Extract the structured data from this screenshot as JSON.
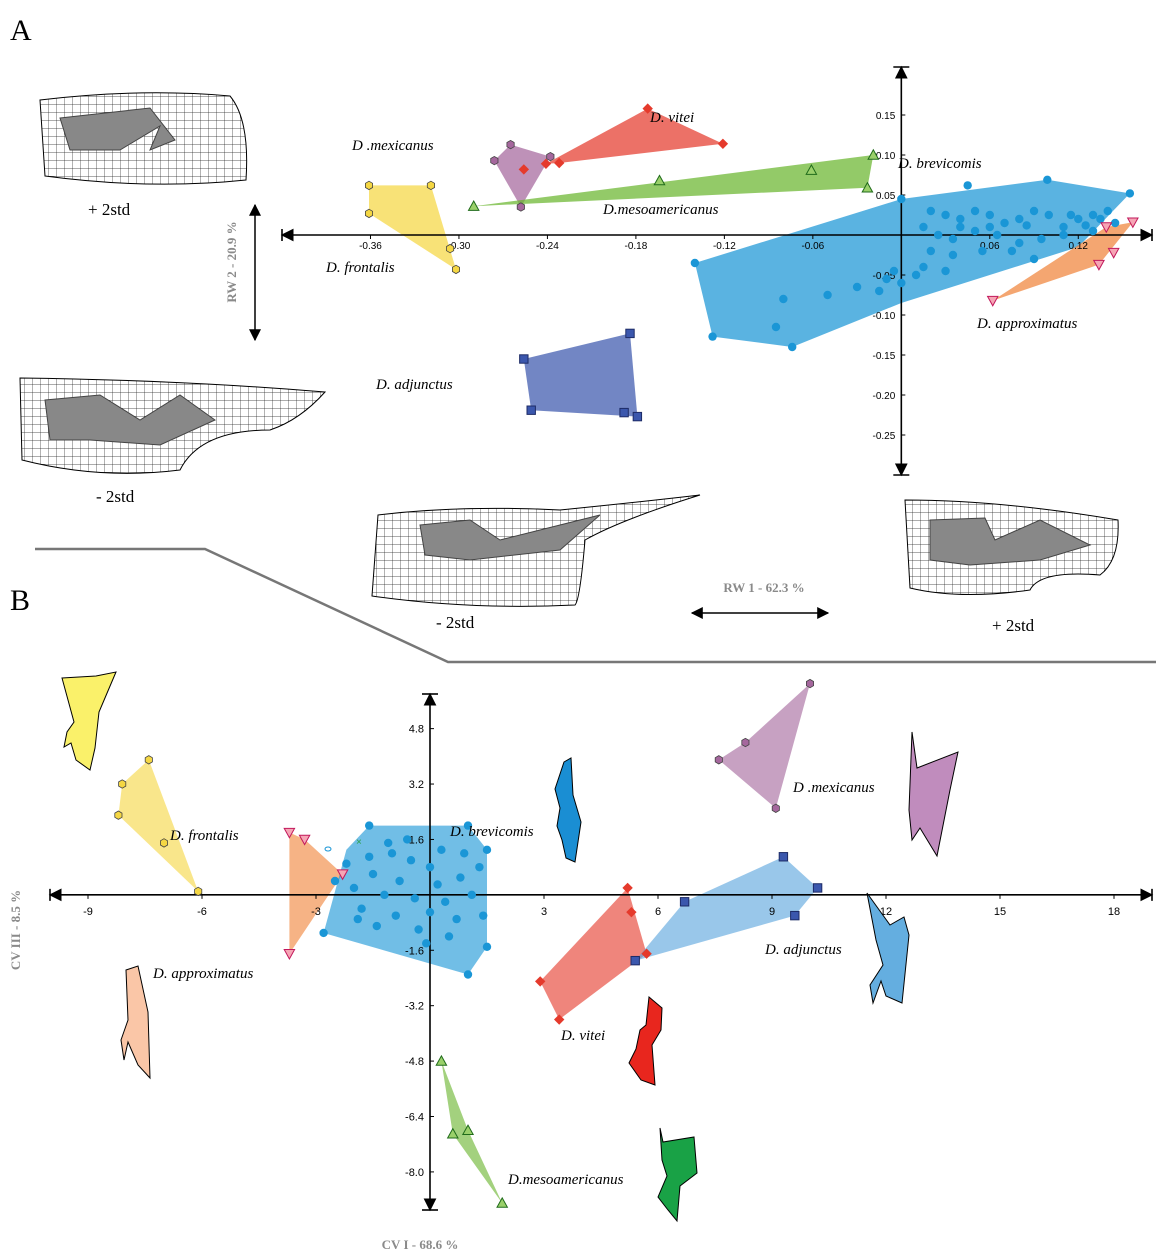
{
  "colors": {
    "frontalis": "#f5d743",
    "mexicanus": "#a5679d",
    "vitei": "#e53a2c",
    "mesoamericanus": "#6ab52e",
    "brevicomis": "#1a96d6",
    "approximatus": "#f0843a",
    "adjunctus": "#3b57ad",
    "mesoamericanusB": "#2aa14a",
    "adjunctusB": "#5aa5dd"
  },
  "panels": {
    "A": "A",
    "B": "B"
  },
  "deformation_labels": {
    "y_plus": "+ 2std",
    "y_minus": "- 2std",
    "x_minus": "- 2std",
    "x_plus": "+ 2std"
  },
  "chart_data": [
    {
      "type": "scatter",
      "panel": "A",
      "xlabel": "RW 1 - 62.3 %",
      "ylabel": "RW 2 - 20.9 %",
      "xlim": [
        -0.42,
        0.17
      ],
      "ylim": [
        -0.3,
        0.21
      ],
      "xticks": [
        "-0.36",
        "-0.30",
        "-0.24",
        "-0.18",
        "-0.12",
        "-0.06",
        "0.06",
        "0.12"
      ],
      "yticks": [
        "0.15",
        "0.10",
        "0.05",
        "-0.05",
        "-0.10",
        "-0.15",
        "-0.20",
        "-0.25"
      ],
      "series": [
        {
          "name": "D. frontalis",
          "marker": "hexagon",
          "color_key": "frontalis",
          "points": [
            [
              -0.361,
              0.062
            ],
            [
              -0.319,
              0.062
            ],
            [
              -0.361,
              0.027
            ],
            [
              -0.306,
              -0.017
            ],
            [
              -0.302,
              -0.043
            ]
          ],
          "hull": [
            [
              -0.361,
              0.062
            ],
            [
              -0.319,
              0.062
            ],
            [
              -0.302,
              -0.043
            ],
            [
              -0.361,
              0.027
            ]
          ]
        },
        {
          "name": "D .mexicanus",
          "marker": "hexagon",
          "color_key": "mexicanus",
          "points": [
            [
              -0.265,
              0.113
            ],
            [
              -0.276,
              0.093
            ],
            [
              -0.258,
              0.035
            ],
            [
              -0.238,
              0.098
            ]
          ],
          "hull": [
            [
              -0.265,
              0.113
            ],
            [
              -0.238,
              0.098
            ],
            [
              -0.258,
              0.035
            ],
            [
              -0.276,
              0.093
            ]
          ]
        },
        {
          "name": "D. vitei",
          "marker": "diamond",
          "color_key": "vitei",
          "points": [
            [
              -0.172,
              0.158
            ],
            [
              -0.121,
              0.114
            ],
            [
              -0.232,
              0.09
            ],
            [
              -0.241,
              0.089
            ],
            [
              -0.256,
              0.082
            ]
          ],
          "hull": [
            [
              -0.172,
              0.158
            ],
            [
              -0.121,
              0.114
            ],
            [
              -0.232,
              0.09
            ],
            [
              -0.241,
              0.089
            ]
          ]
        },
        {
          "name": "D.mesoamericanus",
          "marker": "triangle-up",
          "color_key": "mesoamericanus",
          "points": [
            [
              -0.019,
              0.1
            ],
            [
              -0.061,
              0.081
            ],
            [
              -0.164,
              0.068
            ],
            [
              -0.023,
              0.059
            ],
            [
              -0.29,
              0.036
            ]
          ],
          "hull": [
            [
              -0.019,
              0.1
            ],
            [
              -0.023,
              0.059
            ],
            [
              -0.29,
              0.036
            ]
          ]
        },
        {
          "name": "D. brevicomis",
          "marker": "circle",
          "color_key": "brevicomis",
          "points": [
            [
              0.099,
              0.069
            ],
            [
              0.155,
              0.052
            ],
            [
              0.0,
              0.045
            ],
            [
              0.045,
              0.062
            ],
            [
              0.02,
              0.03
            ],
            [
              0.03,
              0.025
            ],
            [
              0.04,
              0.02
            ],
            [
              0.05,
              0.03
            ],
            [
              0.06,
              0.025
            ],
            [
              0.07,
              0.015
            ],
            [
              0.08,
              0.02
            ],
            [
              0.09,
              0.03
            ],
            [
              0.1,
              0.025
            ],
            [
              0.11,
              0.01
            ],
            [
              0.12,
              0.02
            ],
            [
              0.13,
              0.025
            ],
            [
              0.14,
              0.03
            ],
            [
              0.145,
              0.015
            ],
            [
              0.015,
              0.01
            ],
            [
              0.025,
              0.0
            ],
            [
              0.035,
              -0.005
            ],
            [
              0.05,
              0.005
            ],
            [
              0.065,
              0.0
            ],
            [
              0.08,
              -0.01
            ],
            [
              0.095,
              -0.005
            ],
            [
              0.11,
              0.0
            ],
            [
              0.13,
              0.005
            ],
            [
              0.02,
              -0.02
            ],
            [
              0.035,
              -0.025
            ],
            [
              0.055,
              -0.02
            ],
            [
              0.075,
              -0.02
            ],
            [
              0.09,
              -0.03
            ],
            [
              0.015,
              -0.04
            ],
            [
              0.03,
              -0.045
            ],
            [
              0.01,
              -0.05
            ],
            [
              -0.005,
              -0.045
            ],
            [
              -0.01,
              -0.055
            ],
            [
              0.0,
              -0.06
            ],
            [
              -0.015,
              -0.07
            ],
            [
              -0.03,
              -0.065
            ],
            [
              -0.05,
              -0.075
            ],
            [
              -0.08,
              -0.08
            ],
            [
              -0.14,
              -0.035
            ],
            [
              -0.128,
              -0.127
            ],
            [
              -0.085,
              -0.115
            ],
            [
              -0.074,
              -0.14
            ],
            [
              0.04,
              0.01
            ],
            [
              0.06,
              0.01
            ],
            [
              0.085,
              0.012
            ],
            [
              0.115,
              0.025
            ],
            [
              0.125,
              0.012
            ],
            [
              0.135,
              0.02
            ]
          ],
          "hull": [
            [
              -0.14,
              -0.035
            ],
            [
              0.0,
              0.045
            ],
            [
              0.099,
              0.069
            ],
            [
              0.155,
              0.052
            ],
            [
              0.12,
              -0.015
            ],
            [
              0.0,
              -0.085
            ],
            [
              -0.074,
              -0.14
            ],
            [
              -0.128,
              -0.127
            ]
          ]
        },
        {
          "name": "D. approximatus",
          "marker": "triangle-down",
          "color_key": "approximatus",
          "points": [
            [
              0.139,
              0.01
            ],
            [
              0.157,
              0.016
            ],
            [
              0.144,
              -0.022
            ],
            [
              0.134,
              -0.037
            ],
            [
              0.062,
              -0.082
            ]
          ],
          "hull": [
            [
              0.157,
              0.016
            ],
            [
              0.139,
              0.01
            ],
            [
              0.062,
              -0.082
            ],
            [
              0.134,
              -0.037
            ]
          ]
        },
        {
          "name": "D. adjunctus",
          "marker": "square",
          "color_key": "adjunctus",
          "points": [
            [
              -0.184,
              -0.123
            ],
            [
              -0.256,
              -0.155
            ],
            [
              -0.251,
              -0.219
            ],
            [
              -0.188,
              -0.222
            ],
            [
              -0.179,
              -0.227
            ]
          ],
          "hull": [
            [
              -0.256,
              -0.155
            ],
            [
              -0.184,
              -0.123
            ],
            [
              -0.179,
              -0.227
            ],
            [
              -0.251,
              -0.219
            ]
          ]
        }
      ]
    },
    {
      "type": "scatter",
      "panel": "B",
      "xlabel": "CV I - 68.6 %",
      "ylabel": "CV III - 8.5 %",
      "xlim": [
        -10,
        19
      ],
      "ylim": [
        -9.1,
        5.8
      ],
      "xticks": [
        "-9",
        "-6",
        "-3",
        "3",
        "6",
        "9",
        "12",
        "15",
        "18"
      ],
      "yticks": [
        "4.8",
        "3.2",
        "1.6",
        "-1.6",
        "-3.2",
        "-4.8",
        "-6.4",
        "-8.0"
      ],
      "series": [
        {
          "name": "D. frontalis",
          "marker": "hexagon",
          "color_key": "frontalis",
          "points": [
            [
              -7.4,
              3.9
            ],
            [
              -8.1,
              3.2
            ],
            [
              -8.2,
              2.3
            ],
            [
              -7.0,
              1.5
            ],
            [
              -6.1,
              0.1
            ]
          ],
          "hull": [
            [
              -7.4,
              3.9
            ],
            [
              -6.1,
              0.1
            ],
            [
              -8.2,
              2.3
            ],
            [
              -8.1,
              3.2
            ]
          ]
        },
        {
          "name": "D. approximatus",
          "marker": "triangle-down",
          "color_key": "approximatus",
          "points": [
            [
              -3.7,
              1.8
            ],
            [
              -3.3,
              1.6
            ],
            [
              -2.3,
              0.6
            ],
            [
              -3.7,
              -1.7
            ]
          ],
          "hull": [
            [
              -3.7,
              1.8
            ],
            [
              -3.3,
              1.6
            ],
            [
              -2.3,
              0.6
            ],
            [
              -3.7,
              -1.7
            ]
          ]
        },
        {
          "name": "D. brevicomis",
          "marker": "circle",
          "color_key": "brevicomis",
          "points": [
            [
              -2.8,
              -1.1
            ],
            [
              -1.6,
              2.0
            ],
            [
              1.0,
              2.0
            ],
            [
              1.5,
              1.3
            ],
            [
              1.5,
              -1.5
            ],
            [
              1.0,
              -2.3
            ],
            [
              -1.0,
              1.2
            ],
            [
              -0.5,
              1.0
            ],
            [
              0.0,
              0.8
            ],
            [
              -1.5,
              0.6
            ],
            [
              -0.8,
              0.4
            ],
            [
              0.2,
              0.3
            ],
            [
              0.8,
              0.5
            ],
            [
              -2.0,
              0.2
            ],
            [
              -1.2,
              0.0
            ],
            [
              -0.4,
              -0.1
            ],
            [
              0.4,
              -0.2
            ],
            [
              1.1,
              0.0
            ],
            [
              -1.8,
              -0.4
            ],
            [
              -0.9,
              -0.6
            ],
            [
              0.0,
              -0.5
            ],
            [
              0.7,
              -0.7
            ],
            [
              -1.4,
              -0.9
            ],
            [
              -0.3,
              -1.0
            ],
            [
              0.5,
              -1.2
            ],
            [
              -2.2,
              0.9
            ],
            [
              -1.9,
              -0.7
            ],
            [
              -0.6,
              1.6
            ],
            [
              0.3,
              1.3
            ],
            [
              1.3,
              0.8
            ],
            [
              -1.1,
              1.5
            ],
            [
              -2.5,
              0.4
            ],
            [
              1.4,
              -0.6
            ],
            [
              -0.1,
              -1.4
            ],
            [
              0.9,
              1.2
            ],
            [
              -1.6,
              1.1
            ]
          ],
          "hull": [
            [
              -2.8,
              -1.1
            ],
            [
              -2.2,
              1.3
            ],
            [
              -1.6,
              2.0
            ],
            [
              1.0,
              2.0
            ],
            [
              1.5,
              1.3
            ],
            [
              1.5,
              -1.5
            ],
            [
              1.0,
              -2.3
            ]
          ]
        },
        {
          "name": "D .mexicanus",
          "marker": "hexagon",
          "color_key": "mexicanus",
          "points": [
            [
              10.0,
              6.1
            ],
            [
              8.3,
              4.4
            ],
            [
              7.6,
              3.9
            ],
            [
              9.1,
              2.5
            ]
          ],
          "hull": [
            [
              10.0,
              6.1
            ],
            [
              9.1,
              2.5
            ],
            [
              7.6,
              3.9
            ],
            [
              8.3,
              4.4
            ]
          ]
        },
        {
          "name": "D. vitei",
          "marker": "diamond",
          "color_key": "vitei",
          "points": [
            [
              5.2,
              0.2
            ],
            [
              5.3,
              -0.5
            ],
            [
              5.7,
              -1.7
            ],
            [
              2.9,
              -2.5
            ],
            [
              3.4,
              -3.6
            ]
          ],
          "hull": [
            [
              5.2,
              0.2
            ],
            [
              5.7,
              -1.7
            ],
            [
              3.4,
              -3.6
            ],
            [
              2.9,
              -2.5
            ]
          ]
        },
        {
          "name": "D. adjunctus",
          "marker": "square",
          "color_key": "adjunctusB",
          "points": [
            [
              9.3,
              1.1
            ],
            [
              6.7,
              -0.2
            ],
            [
              10.2,
              0.2
            ],
            [
              9.6,
              -0.6
            ],
            [
              5.4,
              -1.9
            ]
          ],
          "hull": [
            [
              9.3,
              1.1
            ],
            [
              10.2,
              0.2
            ],
            [
              9.6,
              -0.6
            ],
            [
              5.4,
              -1.9
            ],
            [
              6.7,
              -0.2
            ]
          ]
        },
        {
          "name": "D.mesoamericanus",
          "marker": "triangle-up",
          "color_key": "mesoamericanus",
          "points": [
            [
              0.3,
              -4.8
            ],
            [
              0.6,
              -6.9
            ],
            [
              1.0,
              -6.8
            ],
            [
              1.9,
              -8.9
            ]
          ],
          "hull": [
            [
              0.3,
              -4.8
            ],
            [
              1.0,
              -6.8
            ],
            [
              1.9,
              -8.9
            ],
            [
              0.6,
              -6.9
            ]
          ]
        }
      ]
    }
  ]
}
